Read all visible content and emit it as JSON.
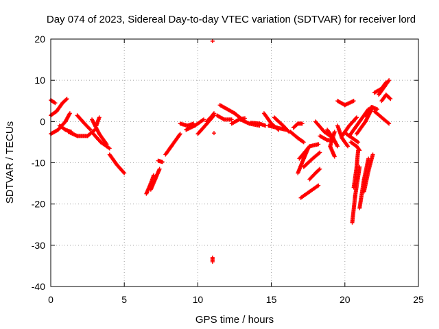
{
  "chart_data": {
    "type": "scatter",
    "title": "Day 074 of 2023, Sidereal Day-to-day VTEC variation (SDTVAR) for receiver lord",
    "xlabel": "GPS time / hours",
    "ylabel": "SDTVAR / TECUs",
    "xlim": [
      0,
      25
    ],
    "ylim": [
      -40,
      20
    ],
    "x_ticks": [
      0,
      5,
      10,
      15,
      20,
      25
    ],
    "y_ticks": [
      20,
      10,
      0,
      -10,
      -20,
      -30,
      -40
    ],
    "x_tick_labels": [
      "0",
      "5",
      "10",
      "15",
      "20",
      "25"
    ],
    "y_tick_labels": [
      "20",
      "10",
      "0",
      "-10",
      "-20",
      "-30",
      "-40"
    ],
    "grid": true,
    "marker": "+",
    "marker_color": "#ff0000",
    "segments": [
      [
        [
          0.0,
          5.2
        ],
        [
          0.3,
          4.5
        ]
      ],
      [
        [
          0.0,
          1.5
        ],
        [
          0.4,
          2.5
        ],
        [
          0.8,
          4.5
        ],
        [
          1.1,
          5.5
        ]
      ],
      [
        [
          0.0,
          -3.0
        ],
        [
          0.5,
          -2.0
        ],
        [
          1.0,
          0.0
        ],
        [
          1.3,
          2.0
        ]
      ],
      [
        [
          0.6,
          -1.0
        ],
        [
          1.0,
          -2.0
        ],
        [
          1.4,
          -2.5
        ]
      ],
      [
        [
          1.2,
          -2.5
        ],
        [
          1.8,
          -3.5
        ],
        [
          2.5,
          -3.5
        ],
        [
          3.0,
          -2.0
        ]
      ],
      [
        [
          1.8,
          1.5
        ],
        [
          2.3,
          -0.5
        ],
        [
          2.7,
          -2.0
        ]
      ],
      [
        [
          2.8,
          0.5
        ],
        [
          3.3,
          -3.0
        ],
        [
          3.8,
          -5.5
        ]
      ],
      [
        [
          2.9,
          -3.0
        ],
        [
          3.4,
          -5.0
        ],
        [
          4.0,
          -6.5
        ]
      ],
      [
        [
          3.3,
          1.0
        ],
        [
          3.1,
          -1.0
        ]
      ],
      [
        [
          4.0,
          -8.0
        ],
        [
          4.5,
          -10.5
        ],
        [
          5.0,
          -12.5
        ]
      ],
      [
        [
          6.5,
          -17.5
        ],
        [
          6.8,
          -15.0
        ],
        [
          7.0,
          -13.0
        ]
      ],
      [
        [
          6.8,
          -16.5
        ],
        [
          7.1,
          -14.0
        ],
        [
          7.4,
          -11.5
        ]
      ],
      [
        [
          7.3,
          -9.5
        ],
        [
          7.6,
          -9.8
        ]
      ],
      [
        [
          7.8,
          -8.0
        ],
        [
          8.2,
          -6.0
        ],
        [
          8.8,
          -3.0
        ]
      ],
      [
        [
          8.8,
          -0.5
        ],
        [
          9.3,
          -1.0
        ],
        [
          9.7,
          -0.5
        ]
      ],
      [
        [
          9.2,
          -2.0
        ],
        [
          9.8,
          -1.0
        ],
        [
          10.4,
          0.5
        ]
      ],
      [
        [
          10.0,
          -3.0
        ],
        [
          10.5,
          -1.0
        ],
        [
          11.1,
          1.5
        ]
      ],
      [
        [
          10.6,
          0.0
        ],
        [
          11.0,
          1.5
        ],
        [
          11.1,
          2.0
        ]
      ],
      [
        [
          11.0,
          19.5
        ]
      ],
      [
        [
          11.1,
          -2.8
        ]
      ],
      [
        [
          11.0,
          -33.0
        ],
        [
          11.0,
          -34.0
        ]
      ],
      [
        [
          11.3,
          1.5
        ],
        [
          11.8,
          0.5
        ],
        [
          12.3,
          0.5
        ]
      ],
      [
        [
          11.5,
          4.0
        ],
        [
          12.5,
          2.0
        ],
        [
          13.2,
          0.0
        ]
      ],
      [
        [
          12.3,
          -0.5
        ],
        [
          12.8,
          0.5
        ],
        [
          13.2,
          0.8
        ]
      ],
      [
        [
          12.9,
          0.5
        ],
        [
          13.5,
          -0.5
        ],
        [
          14.2,
          -1.0
        ]
      ],
      [
        [
          13.6,
          -0.3
        ],
        [
          14.2,
          -0.5
        ],
        [
          14.6,
          -1.0
        ]
      ],
      [
        [
          14.5,
          2.0
        ],
        [
          15.0,
          -0.5
        ],
        [
          15.5,
          -2.0
        ]
      ],
      [
        [
          14.8,
          -1.0
        ],
        [
          15.4,
          -1.5
        ],
        [
          16.0,
          -2.0
        ]
      ],
      [
        [
          15.2,
          1.0
        ],
        [
          15.8,
          -1.0
        ],
        [
          16.2,
          -2.5
        ]
      ],
      [
        [
          16.3,
          -2.5
        ],
        [
          16.8,
          -4.0
        ],
        [
          17.2,
          -5.0
        ]
      ],
      [
        [
          16.5,
          -1.5
        ],
        [
          16.8,
          -0.5
        ],
        [
          17.1,
          -0.5
        ]
      ],
      [
        [
          16.8,
          -12.5
        ],
        [
          17.2,
          -9.0
        ],
        [
          17.5,
          -6.5
        ]
      ],
      [
        [
          16.9,
          -9.0
        ],
        [
          17.6,
          -6.0
        ],
        [
          18.2,
          -5.5
        ]
      ],
      [
        [
          17.2,
          -11.0
        ],
        [
          17.8,
          -9.0
        ],
        [
          18.3,
          -7.5
        ]
      ],
      [
        [
          17.6,
          -14.0
        ],
        [
          18.0,
          -12.5
        ],
        [
          18.3,
          -11.5
        ]
      ],
      [
        [
          17.0,
          -18.5
        ],
        [
          17.6,
          -17.0
        ],
        [
          18.2,
          -15.5
        ]
      ],
      [
        [
          18.0,
          0.0
        ],
        [
          18.6,
          -2.5
        ],
        [
          19.2,
          -4.0
        ]
      ],
      [
        [
          18.3,
          -3.5
        ],
        [
          18.8,
          -4.5
        ],
        [
          19.2,
          -4.5
        ]
      ],
      [
        [
          18.8,
          -2.0
        ],
        [
          19.2,
          -4.0
        ],
        [
          19.5,
          -6.0
        ]
      ],
      [
        [
          19.3,
          -2.5
        ],
        [
          19.0,
          -6.0
        ],
        [
          19.3,
          -8.5
        ]
      ],
      [
        [
          19.5,
          -1.0
        ],
        [
          19.8,
          -4.0
        ],
        [
          20.2,
          -6.0
        ]
      ],
      [
        [
          19.5,
          5.0
        ],
        [
          20.0,
          4.0
        ],
        [
          20.6,
          5.0
        ]
      ],
      [
        [
          19.8,
          -3.5
        ],
        [
          20.3,
          -1.0
        ],
        [
          20.8,
          1.0
        ]
      ],
      [
        [
          20.1,
          -3.0
        ],
        [
          20.5,
          -4.0
        ],
        [
          20.9,
          -5.0
        ]
      ],
      [
        [
          20.3,
          -3.5
        ],
        [
          21.0,
          0.0
        ],
        [
          21.6,
          3.0
        ]
      ],
      [
        [
          20.4,
          -5.0
        ],
        [
          20.8,
          -6.0
        ],
        [
          21.0,
          -7.0
        ]
      ],
      [
        [
          20.8,
          -3.0
        ],
        [
          21.4,
          0.0
        ],
        [
          21.9,
          3.5
        ]
      ],
      [
        [
          20.5,
          -24.5
        ],
        [
          20.7,
          -18.0
        ],
        [
          21.0,
          -11.0
        ]
      ],
      [
        [
          20.6,
          -16.0
        ],
        [
          20.8,
          -11.0
        ],
        [
          20.9,
          -7.0
        ]
      ],
      [
        [
          21.0,
          -21.0
        ],
        [
          21.3,
          -14.0
        ],
        [
          21.6,
          -9.0
        ]
      ],
      [
        [
          21.3,
          -17.0
        ],
        [
          21.6,
          -12.0
        ],
        [
          21.9,
          -8.0
        ]
      ],
      [
        [
          21.4,
          1.5
        ],
        [
          21.8,
          3.5
        ],
        [
          22.2,
          3.0
        ]
      ],
      [
        [
          22.0,
          2.5
        ],
        [
          22.5,
          1.0
        ],
        [
          23.0,
          -0.5
        ]
      ],
      [
        [
          22.0,
          7.0
        ],
        [
          22.5,
          8.0
        ],
        [
          22.8,
          9.5
        ]
      ],
      [
        [
          22.3,
          6.5
        ],
        [
          22.7,
          8.5
        ],
        [
          23.0,
          10.0
        ]
      ],
      [
        [
          22.5,
          5.0
        ],
        [
          22.8,
          6.5
        ],
        [
          23.1,
          5.5
        ]
      ]
    ]
  }
}
